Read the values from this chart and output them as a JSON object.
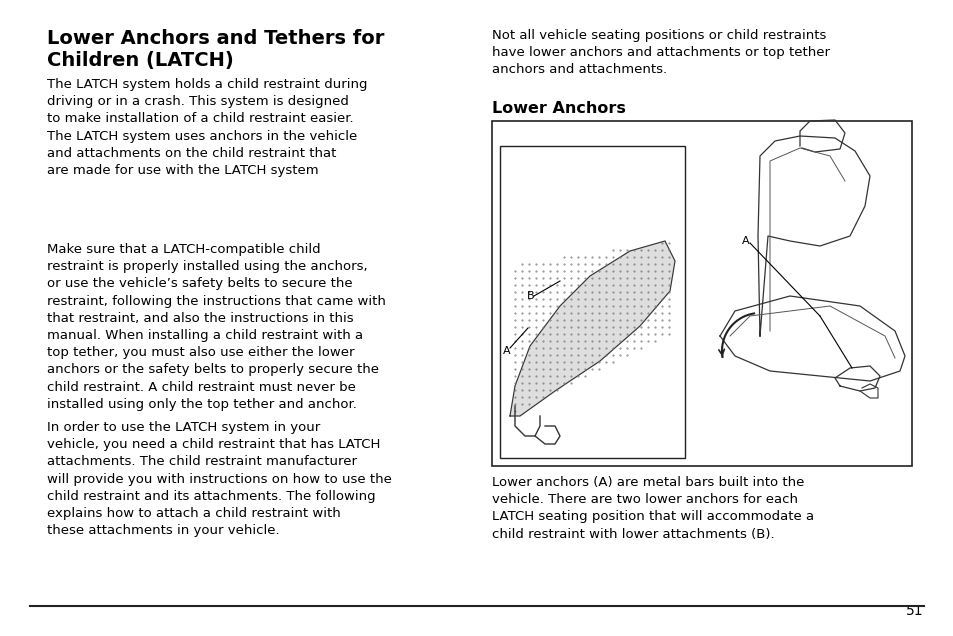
{
  "background_color": "#ffffff",
  "page_number": "51",
  "title_line1": "Lower Anchors and Tethers for",
  "title_line2": "Children (LATCH)",
  "left_para1": "The LATCH system holds a child restraint during\ndriving or in a crash. This system is designed\nto make installation of a child restraint easier.\nThe LATCH system uses anchors in the vehicle\nand attachments on the child restraint that\nare made for use with the LATCH system",
  "left_para2": "Make sure that a LATCH-compatible child\nrestraint is properly installed using the anchors,\nor use the vehicle’s safety belts to secure the\nrestraint, following the instructions that came with\nthat restraint, and also the instructions in this\nmanual. When installing a child restraint with a\ntop tether, you must also use either the lower\nanchors or the safety belts to properly secure the\nchild restraint. A child restraint must never be\ninstalled using only the top tether and anchor.",
  "left_para3": "In order to use the LATCH system in your\nvehicle, you need a child restraint that has LATCH\nattachments. The child restraint manufacturer\nwill provide you with instructions on how to use the\nchild restraint and its attachments. The following\nexplains how to attach a child restraint with\nthese attachments in your vehicle.",
  "right_para": "Not all vehicle seating positions or child restraints\nhave lower anchors and attachments or top tether\nanchors and attachments.",
  "right_subtitle": "Lower Anchors",
  "right_caption": "Lower anchors (A) are metal bars built into the\nvehicle. There are two lower anchors for each\nLATCH seating position that will accommodate a\nchild restraint with lower attachments (B).",
  "text_color": "#000000",
  "title_fontsize": 14,
  "body_fontsize": 9.5,
  "subtitle_fontsize": 11.5
}
